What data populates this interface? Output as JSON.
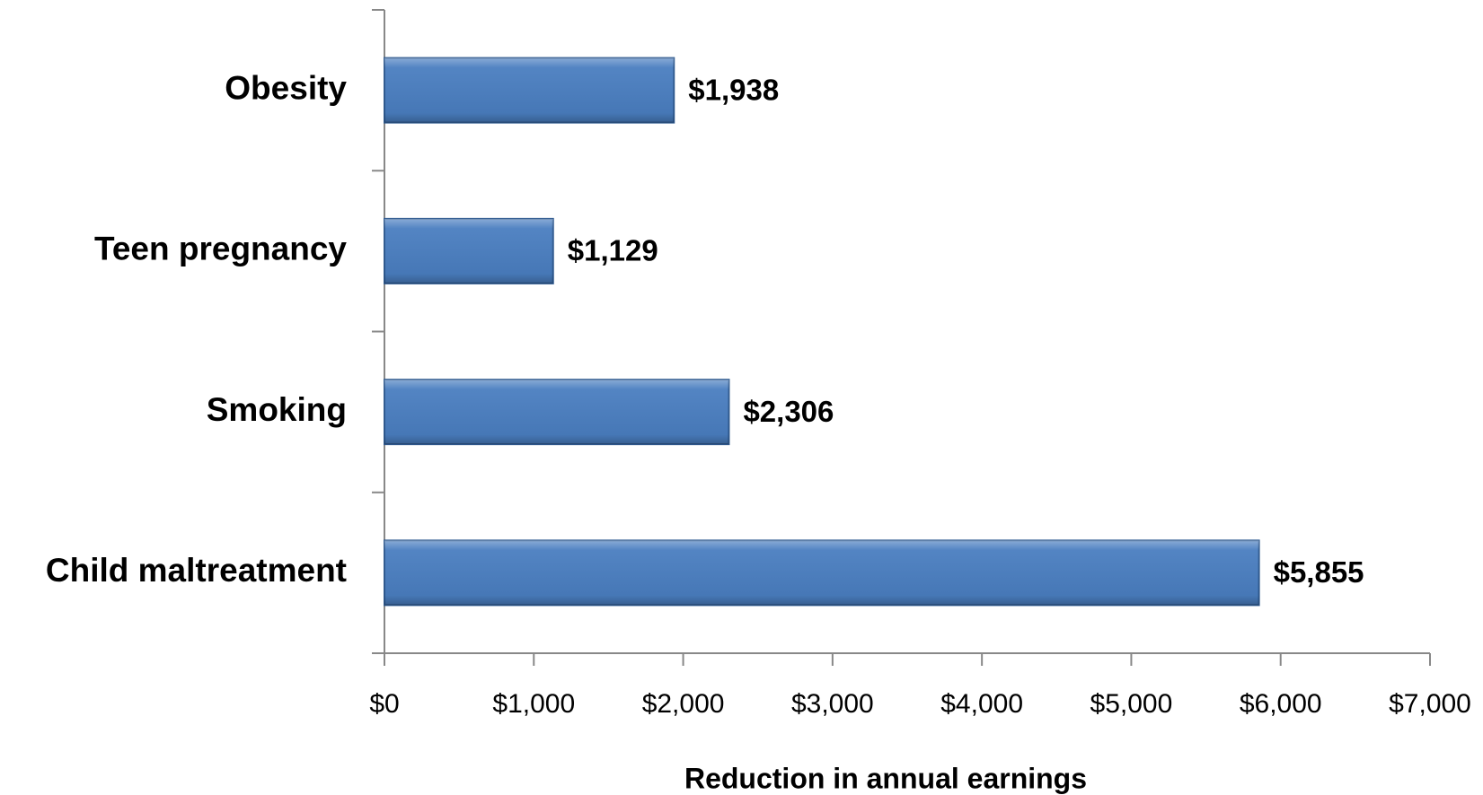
{
  "chart_data": {
    "type": "bar",
    "orientation": "horizontal",
    "x_label": "Reduction in annual earnings",
    "categories": [
      "Obesity",
      "Teen pregnancy",
      "Smoking",
      "Child maltreatment"
    ],
    "values": [
      1938,
      1129,
      2306,
      5855
    ],
    "value_labels": [
      "$1,938",
      "$1,129",
      "$2,306",
      "$5,855"
    ],
    "color": "#4a7ec0",
    "xlim": [
      0,
      7000
    ],
    "xticks": [
      {
        "value": 0,
        "label": "$0"
      },
      {
        "value": 1000,
        "label": "$1,000"
      },
      {
        "value": 2000,
        "label": "$2,000"
      },
      {
        "value": 3000,
        "label": "$3,000"
      },
      {
        "value": 4000,
        "label": "$4,000"
      },
      {
        "value": 5000,
        "label": "$5,000"
      },
      {
        "value": 6000,
        "label": "$6,000"
      },
      {
        "value": 7000,
        "label": "$7,000"
      }
    ],
    "grid": false
  }
}
